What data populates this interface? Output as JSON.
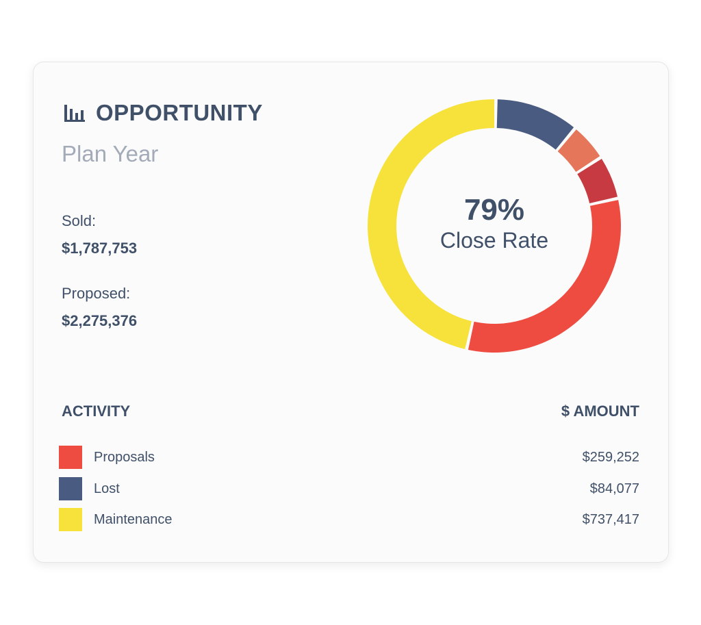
{
  "header": {
    "icon": "bar-chart-icon",
    "title": "OPPORTUNITY",
    "subtitle": "Plan Year"
  },
  "stats": {
    "sold_label": "Sold:",
    "sold_value": "$1,787,753",
    "proposed_label": "Proposed:",
    "proposed_value": "$2,275,376"
  },
  "donut_center": {
    "value": "79%",
    "label": "Close Rate"
  },
  "table": {
    "col_activity": "ACTIVITY",
    "col_amount": "$ AMOUNT",
    "rows": [
      {
        "label": "Proposals",
        "amount": "$259,252",
        "color": "#ee4c40"
      },
      {
        "label": "Lost",
        "amount": "$84,077",
        "color": "#4a5b82"
      },
      {
        "label": "Maintenance",
        "amount": "$737,417",
        "color": "#f6e23b"
      }
    ]
  },
  "chart_data": {
    "type": "pie",
    "donut": true,
    "segments": [
      {
        "color": "#4a5b82",
        "percent": 10.8
      },
      {
        "color": "#e5765a",
        "percent": 4.9
      },
      {
        "color": "#c73a42",
        "percent": 5.6
      },
      {
        "color": "#ee4c40",
        "percent": 32
      },
      {
        "color": "#f6e23b",
        "percent": 46.7
      }
    ]
  }
}
